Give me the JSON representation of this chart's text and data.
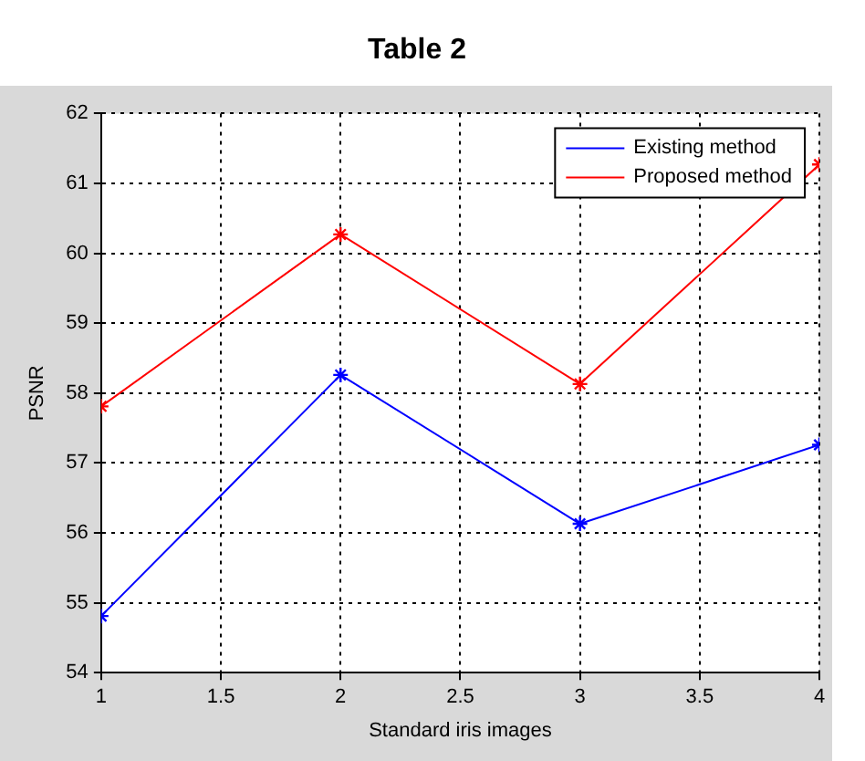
{
  "chart_data": {
    "type": "line",
    "title": "Table 2",
    "xlabel": "Standard iris images",
    "ylabel": "PSNR",
    "x": [
      1,
      2,
      3,
      4
    ],
    "series": [
      {
        "name": "Existing method",
        "color": "#0000ff",
        "values": [
          54.81,
          58.26,
          56.13,
          57.26
        ]
      },
      {
        "name": "Proposed method",
        "color": "#ff0000",
        "values": [
          57.81,
          60.27,
          58.13,
          61.27
        ]
      }
    ],
    "xlim": [
      1,
      4
    ],
    "xticks": [
      1,
      1.5,
      2,
      2.5,
      3,
      3.5,
      4
    ],
    "ylim": [
      54,
      62
    ],
    "yticks": [
      54,
      55,
      56,
      57,
      58,
      59,
      60,
      61,
      62
    ],
    "grid": true,
    "legend": "top right",
    "marker": "cross",
    "line_style": "solid"
  }
}
